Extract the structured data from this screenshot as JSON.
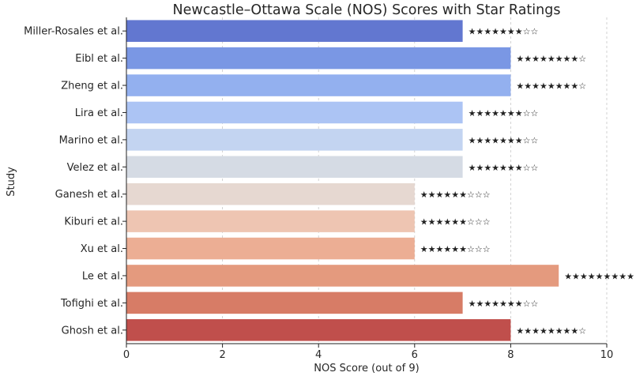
{
  "chart_data": {
    "type": "bar",
    "orientation": "horizontal",
    "title": "Newcastle–Ottawa Scale (NOS) Scores with Star Ratings",
    "xlabel": "NOS Score (out of 9)",
    "ylabel": "Study",
    "xlim": [
      0,
      10
    ],
    "xticks": [
      "0",
      "2",
      "4",
      "6",
      "8",
      "10"
    ],
    "grid": "vertical dashed",
    "categories": [
      "Miller-Rosales et al.",
      "Eibl et al.",
      "Zheng et al.",
      "Lira et al.",
      "Marino et al.",
      "Velez et al.",
      "Ganesh et al.",
      "Kiburi et al.",
      "Xu et al.",
      "Le et al.",
      "Tofighi et al.",
      "Ghosh et al."
    ],
    "values": [
      7,
      8,
      8,
      7,
      7,
      7,
      6,
      6,
      6,
      9,
      7,
      8
    ],
    "star_labels": [
      "★★★★★★★☆☆",
      "★★★★★★★★☆",
      "★★★★★★★★☆",
      "★★★★★★★☆☆",
      "★★★★★★★☆☆",
      "★★★★★★★☆☆",
      "★★★★★★☆☆☆",
      "★★★★★★☆☆☆",
      "★★★★★★☆☆☆",
      "★★★★★★★★★",
      "★★★★★★★☆☆",
      "★★★★★★★★☆"
    ],
    "colors": [
      "#6277d0",
      "#7a97e4",
      "#93b0ef",
      "#acc4f4",
      "#c3d4f1",
      "#d5dbe4",
      "#e6d8d1",
      "#eec5b2",
      "#ecae94",
      "#e49a7e",
      "#d77c66",
      "#c04f4c"
    ]
  }
}
